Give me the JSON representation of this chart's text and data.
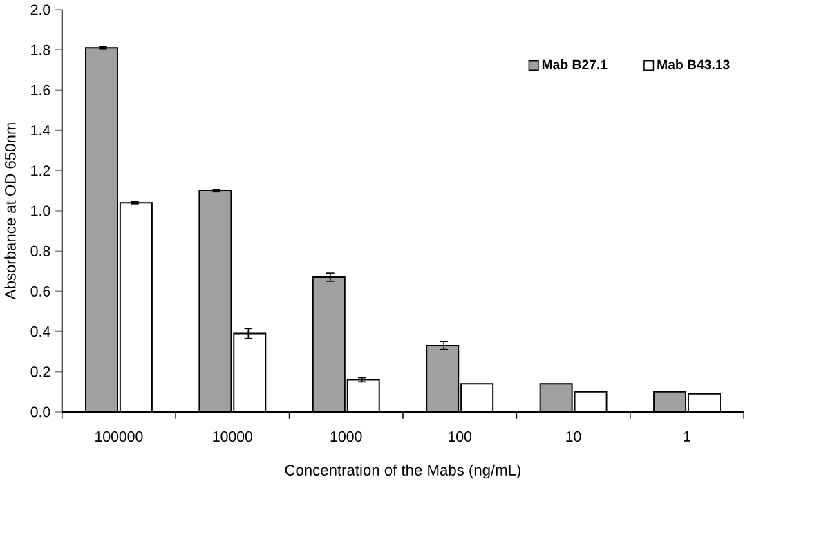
{
  "chart_data": {
    "type": "bar",
    "xlabel": "Concentration of the Mabs (ng/mL)",
    "ylabel": "Absorbance at OD 650nm",
    "categories": [
      "100000",
      "10000",
      "1000",
      "100",
      "10",
      "1"
    ],
    "series": [
      {
        "name": "Mab B27.1",
        "color": "#a0a0a0",
        "values": [
          1.81,
          1.1,
          0.67,
          0.33,
          0.14,
          0.1
        ],
        "errors": [
          0.005,
          0.005,
          0.02,
          0.02,
          null,
          null
        ]
      },
      {
        "name": "Mab B43.13",
        "color": "#ffffff",
        "values": [
          1.04,
          0.39,
          0.16,
          0.14,
          0.1,
          0.09
        ],
        "errors": [
          0.005,
          0.025,
          0.01,
          null,
          null,
          null
        ]
      }
    ],
    "ylim": [
      0,
      2.0
    ],
    "yticks": [
      {
        "value": 0,
        "label": "0.0"
      },
      {
        "value": 0.2,
        "label": "0.2"
      },
      {
        "value": 0.4,
        "label": "0.4"
      },
      {
        "value": 0.6,
        "label": "0.6"
      },
      {
        "value": 0.8,
        "label": "0.8"
      },
      {
        "value": 1.0,
        "label": "1.0"
      },
      {
        "value": 1.2,
        "label": "1.2"
      },
      {
        "value": 1.4,
        "label": "1.4"
      },
      {
        "value": 1.6,
        "label": "1.6"
      },
      {
        "value": 1.8,
        "label": "1.8"
      },
      {
        "value": 2.0,
        "label": "2.0"
      }
    ],
    "grid": false,
    "legend": "top right"
  }
}
